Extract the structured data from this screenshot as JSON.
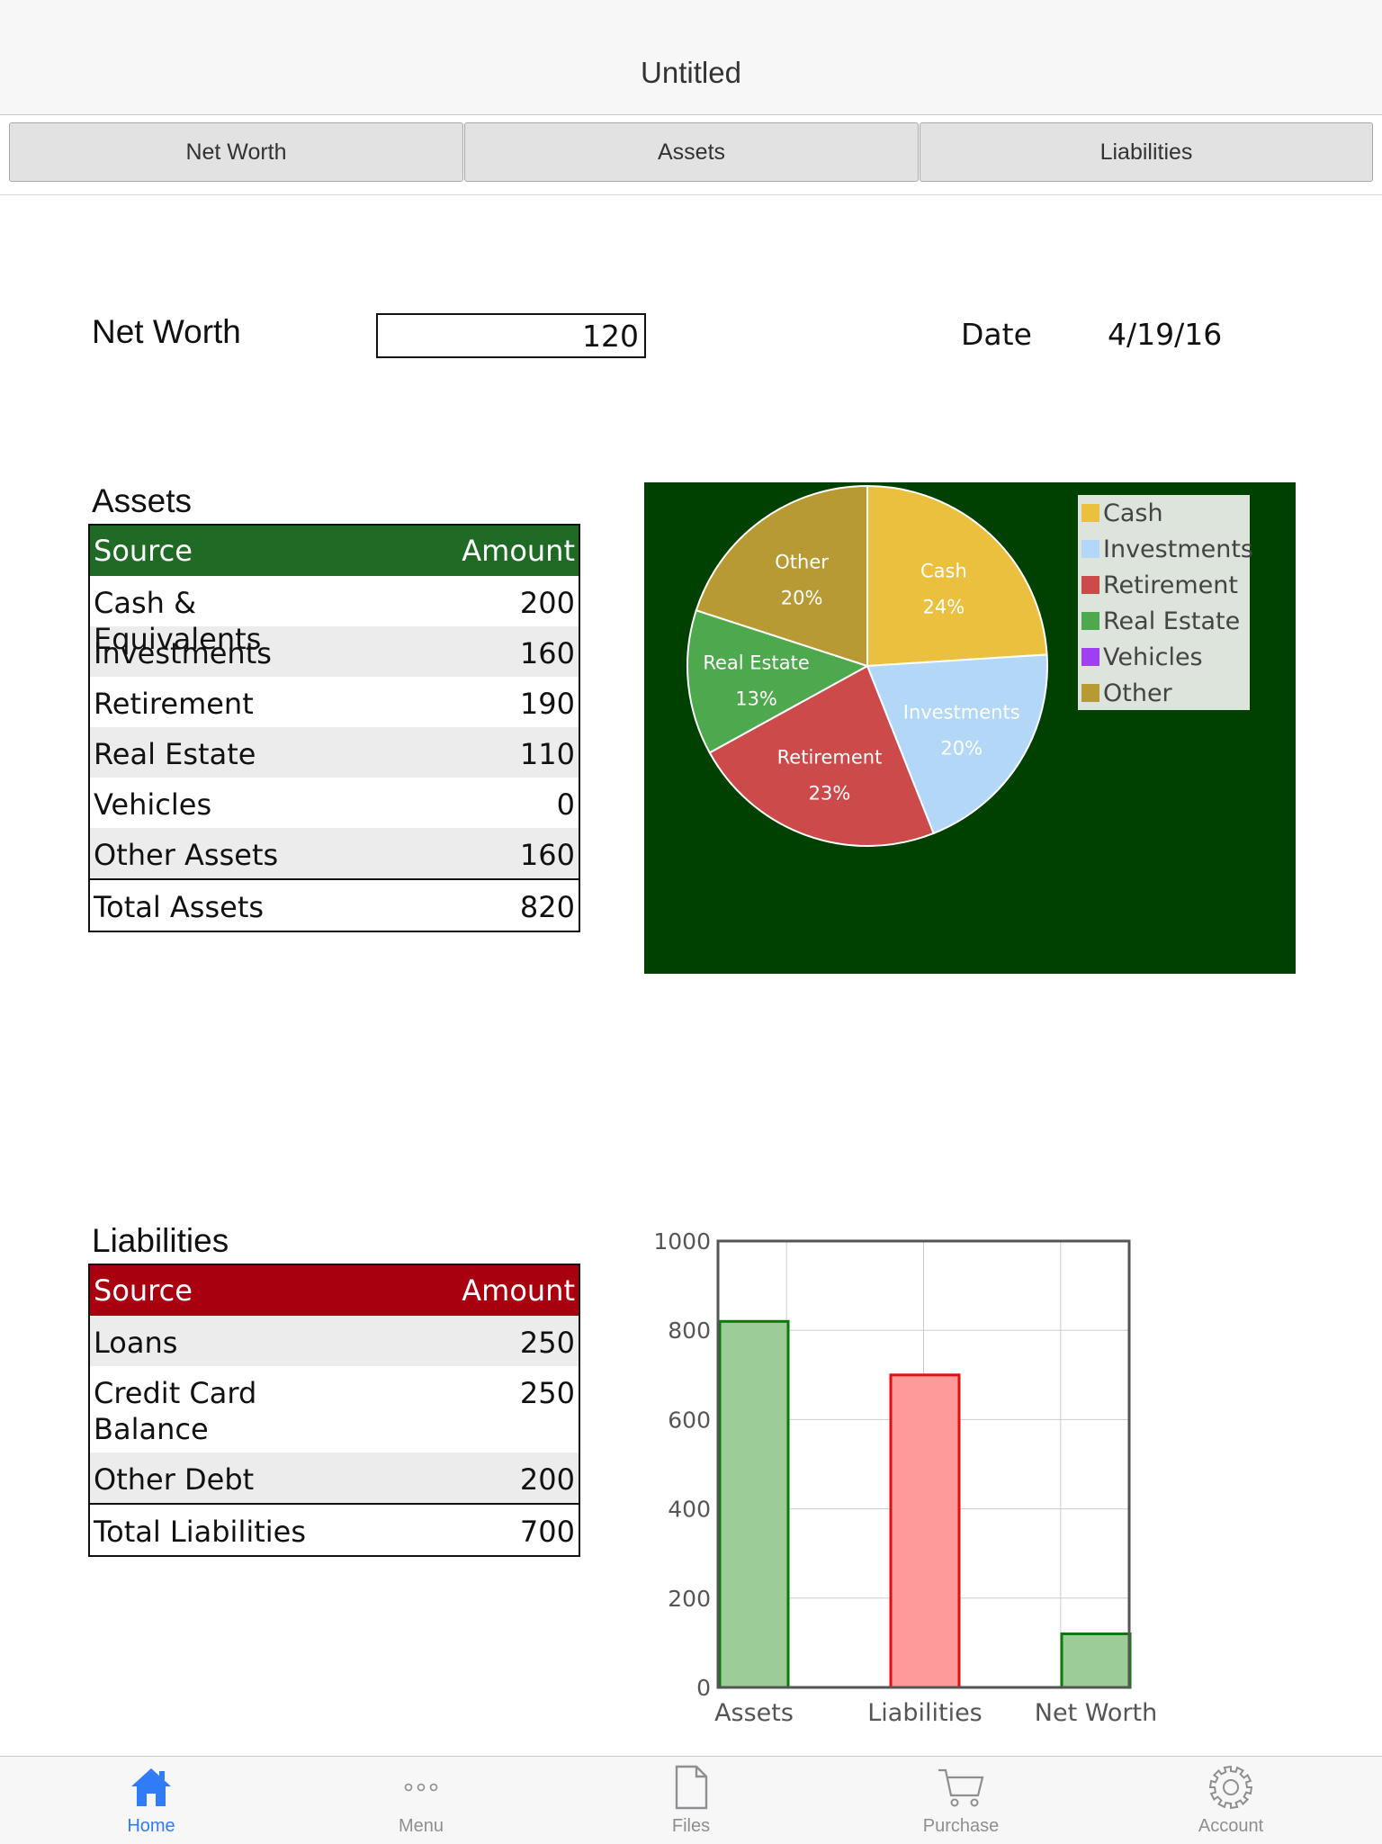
{
  "window": {
    "title": "Untitled"
  },
  "tabs": [
    {
      "label": "Net Worth"
    },
    {
      "label": "Assets"
    },
    {
      "label": "Liabilities"
    }
  ],
  "net_worth": {
    "label": "Net Worth",
    "value": "120",
    "date_label": "Date",
    "date_value": "4/19/16"
  },
  "assets": {
    "title": "Assets",
    "header": {
      "source": "Source",
      "amount": "Amount"
    },
    "header_color": "#1f6b25",
    "rows": [
      {
        "source": "Cash & Equivalents",
        "amount": "200"
      },
      {
        "source": "Investments",
        "amount": "160"
      },
      {
        "source": "Retirement",
        "amount": "190"
      },
      {
        "source": "Real Estate",
        "amount": "110"
      },
      {
        "source": "Vehicles",
        "amount": "0"
      },
      {
        "source": "Other Assets",
        "amount": "160"
      }
    ],
    "total": {
      "source": "Total Assets",
      "amount": "820"
    }
  },
  "liabilities": {
    "title": "Liabilities",
    "header": {
      "source": "Source",
      "amount": "Amount"
    },
    "header_color": "#a8000f",
    "rows": [
      {
        "source": "Loans",
        "amount": "250"
      },
      {
        "source": "Credit Card Balance",
        "amount": "250"
      },
      {
        "source": "Other Debt",
        "amount": "200"
      }
    ],
    "total": {
      "source": "Total Liabilities",
      "amount": "700"
    }
  },
  "chart_data": [
    {
      "type": "pie",
      "background": "#004000",
      "legend_placement": "top-right",
      "slices": [
        {
          "name": "Cash",
          "value": 24,
          "label": "24%",
          "color": "#ecc03f"
        },
        {
          "name": "Investments",
          "value": 20,
          "label": "20%",
          "color": "#b2d7f7"
        },
        {
          "name": "Retirement",
          "value": 23,
          "label": "23%",
          "color": "#cc4a4a"
        },
        {
          "name": "Real Estate",
          "value": 13,
          "label": "13%",
          "color": "#4ea84e"
        },
        {
          "name": "Vehicles",
          "value": 0,
          "label": "",
          "color": "#9f3ff0"
        },
        {
          "name": "Other",
          "value": 20,
          "label": "20%",
          "color": "#b89a34"
        }
      ]
    },
    {
      "type": "bar",
      "categories": [
        "Assets",
        "Liabilities",
        "Net Worth"
      ],
      "values": [
        820,
        700,
        120
      ],
      "fills": [
        "#9ccd98",
        "#ff9a9a",
        "#9ccd98"
      ],
      "strokes": [
        "#0b7a0b",
        "#e01010",
        "#0b7a0b"
      ],
      "ylim": [
        0,
        1000
      ],
      "yticks": [
        0,
        200,
        400,
        600,
        800,
        1000
      ],
      "grid": true
    }
  ],
  "tabbar": {
    "items": [
      {
        "label": "Home",
        "icon": "home-icon",
        "active": true
      },
      {
        "label": "Menu",
        "icon": "more-icon",
        "active": false
      },
      {
        "label": "Files",
        "icon": "file-icon",
        "active": false
      },
      {
        "label": "Purchase",
        "icon": "cart-icon",
        "active": false
      },
      {
        "label": "Account",
        "icon": "gear-icon",
        "active": false
      }
    ],
    "active_color": "#2f7cf6"
  }
}
